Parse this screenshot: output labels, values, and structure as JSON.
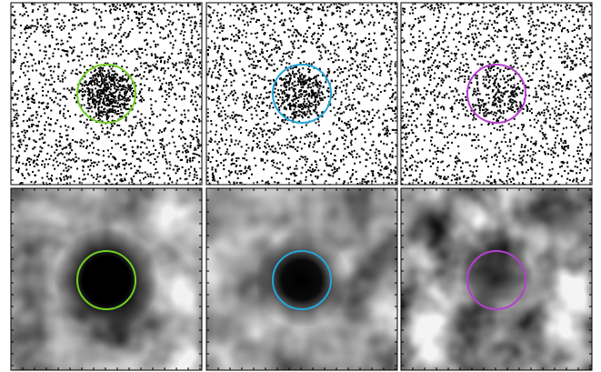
{
  "figure": {
    "rows": 2,
    "cols": 3,
    "panels": [
      {
        "row": "top",
        "style": "sparse-counts",
        "circle_color": "#6fcf22",
        "central_excess": 0.95
      },
      {
        "row": "top",
        "style": "sparse-counts",
        "circle_color": "#22a6d8",
        "central_excess": 0.7
      },
      {
        "row": "top",
        "style": "sparse-counts",
        "circle_color": "#b53fcf",
        "central_excess": 0.35
      },
      {
        "row": "bottom",
        "style": "smoothed-grayscale",
        "circle_color": "#6fcf22",
        "central_excess": 1.0
      },
      {
        "row": "bottom",
        "style": "smoothed-grayscale",
        "circle_color": "#22a6d8",
        "central_excess": 0.9
      },
      {
        "row": "bottom",
        "style": "smoothed-grayscale",
        "circle_color": "#b53fcf",
        "central_excess": 0.45
      }
    ]
  }
}
